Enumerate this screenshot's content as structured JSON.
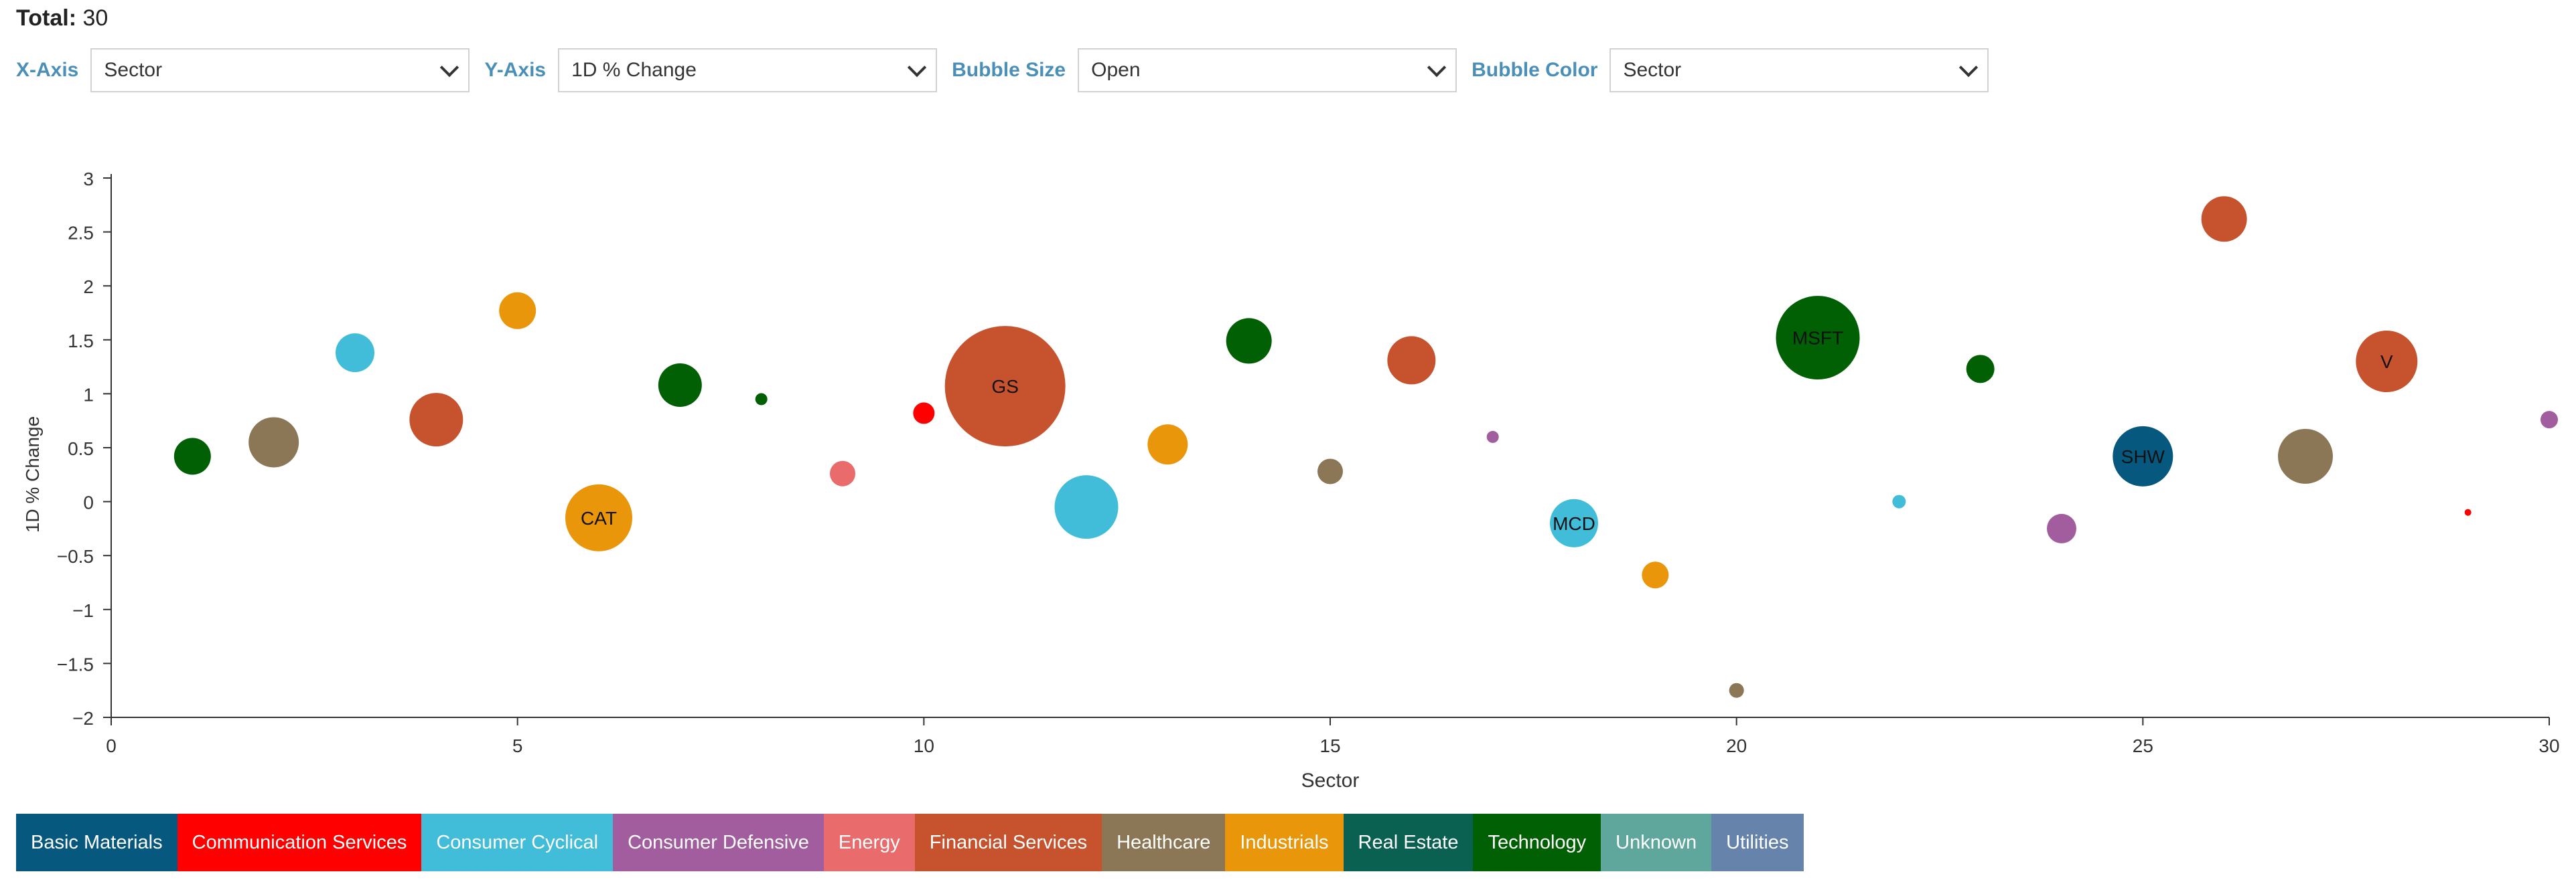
{
  "total": {
    "label": "Total:",
    "value": "30"
  },
  "controls": [
    {
      "label": "X-Axis",
      "value": "Sector"
    },
    {
      "label": "Y-Axis",
      "value": "1D % Change"
    },
    {
      "label": "Bubble Size",
      "value": "Open"
    },
    {
      "label": "Bubble Color",
      "value": "Sector"
    }
  ],
  "legend": [
    {
      "label": "Basic Materials",
      "color": "#07587f"
    },
    {
      "label": "Communication Services",
      "color": "#ff0000"
    },
    {
      "label": "Consumer Cyclical",
      "color": "#41bcd9"
    },
    {
      "label": "Consumer Defensive",
      "color": "#a25d9f"
    },
    {
      "label": "Energy",
      "color": "#ea6b6b"
    },
    {
      "label": "Financial Services",
      "color": "#c6532d"
    },
    {
      "label": "Healthcare",
      "color": "#8b7755"
    },
    {
      "label": "Industrials",
      "color": "#e9960a"
    },
    {
      "label": "Real Estate",
      "color": "#0a6152"
    },
    {
      "label": "Technology",
      "color": "#026004"
    },
    {
      "label": "Unknown",
      "color": "#5fa79c"
    },
    {
      "label": "Utilities",
      "color": "#6583ab"
    }
  ],
  "chart_data": {
    "type": "scatter",
    "xlabel": "Sector",
    "ylabel": "1D % Change",
    "xlim": [
      0,
      30
    ],
    "ylim": [
      -2,
      3
    ],
    "xticks": [
      0,
      5,
      10,
      15,
      20,
      25,
      30
    ],
    "yticks": [
      -2,
      -1.5,
      -1,
      -0.5,
      0,
      0.5,
      1,
      1.5,
      2,
      2.5,
      3
    ],
    "grid": false,
    "legend_position": "bottom",
    "points": [
      {
        "x": 1,
        "y": 0.42,
        "size": 55,
        "sector": "Technology",
        "label": ""
      },
      {
        "x": 2,
        "y": 0.55,
        "size": 75,
        "sector": "Healthcare",
        "label": ""
      },
      {
        "x": 3,
        "y": 1.38,
        "size": 58,
        "sector": "Consumer Cyclical",
        "label": ""
      },
      {
        "x": 4,
        "y": 0.76,
        "size": 80,
        "sector": "Financial Services",
        "label": ""
      },
      {
        "x": 5,
        "y": 1.77,
        "size": 55,
        "sector": "Industrials",
        "label": ""
      },
      {
        "x": 6,
        "y": -0.15,
        "size": 100,
        "sector": "Industrials",
        "label": "CAT"
      },
      {
        "x": 7,
        "y": 1.08,
        "size": 65,
        "sector": "Technology",
        "label": ""
      },
      {
        "x": 8,
        "y": 0.95,
        "size": 18,
        "sector": "Technology",
        "label": ""
      },
      {
        "x": 9,
        "y": 0.26,
        "size": 38,
        "sector": "Energy",
        "label": ""
      },
      {
        "x": 10,
        "y": 0.82,
        "size": 32,
        "sector": "Communication Services",
        "label": ""
      },
      {
        "x": 11,
        "y": 1.07,
        "size": 180,
        "sector": "Financial Services",
        "label": "GS"
      },
      {
        "x": 12,
        "y": -0.05,
        "size": 95,
        "sector": "Consumer Cyclical",
        "label": ""
      },
      {
        "x": 13,
        "y": 0.53,
        "size": 60,
        "sector": "Industrials",
        "label": ""
      },
      {
        "x": 14,
        "y": 1.49,
        "size": 68,
        "sector": "Technology",
        "label": ""
      },
      {
        "x": 15,
        "y": 0.28,
        "size": 38,
        "sector": "Healthcare",
        "label": ""
      },
      {
        "x": 16,
        "y": 1.31,
        "size": 72,
        "sector": "Financial Services",
        "label": ""
      },
      {
        "x": 17,
        "y": 0.6,
        "size": 18,
        "sector": "Consumer Defensive",
        "label": ""
      },
      {
        "x": 18,
        "y": -0.2,
        "size": 72,
        "sector": "Consumer Cyclical",
        "label": "MCD"
      },
      {
        "x": 19,
        "y": -0.68,
        "size": 40,
        "sector": "Industrials",
        "label": ""
      },
      {
        "x": 20,
        "y": -1.75,
        "size": 22,
        "sector": "Healthcare",
        "label": ""
      },
      {
        "x": 21,
        "y": 1.52,
        "size": 125,
        "sector": "Technology",
        "label": "MSFT"
      },
      {
        "x": 22,
        "y": 0.0,
        "size": 20,
        "sector": "Consumer Cyclical",
        "label": ""
      },
      {
        "x": 23,
        "y": 1.23,
        "size": 42,
        "sector": "Technology",
        "label": ""
      },
      {
        "x": 24,
        "y": -0.25,
        "size": 44,
        "sector": "Consumer Defensive",
        "label": ""
      },
      {
        "x": 25,
        "y": 0.42,
        "size": 90,
        "sector": "Basic Materials",
        "label": "SHW"
      },
      {
        "x": 26,
        "y": 2.62,
        "size": 68,
        "sector": "Financial Services",
        "label": ""
      },
      {
        "x": 27,
        "y": 0.42,
        "size": 82,
        "sector": "Healthcare",
        "label": ""
      },
      {
        "x": 28,
        "y": 1.3,
        "size": 92,
        "sector": "Financial Services",
        "label": "V"
      },
      {
        "x": 29,
        "y": -0.1,
        "size": 10,
        "sector": "Communication Services",
        "label": ""
      },
      {
        "x": 30,
        "y": 0.76,
        "size": 26,
        "sector": "Consumer Defensive",
        "label": ""
      }
    ]
  }
}
